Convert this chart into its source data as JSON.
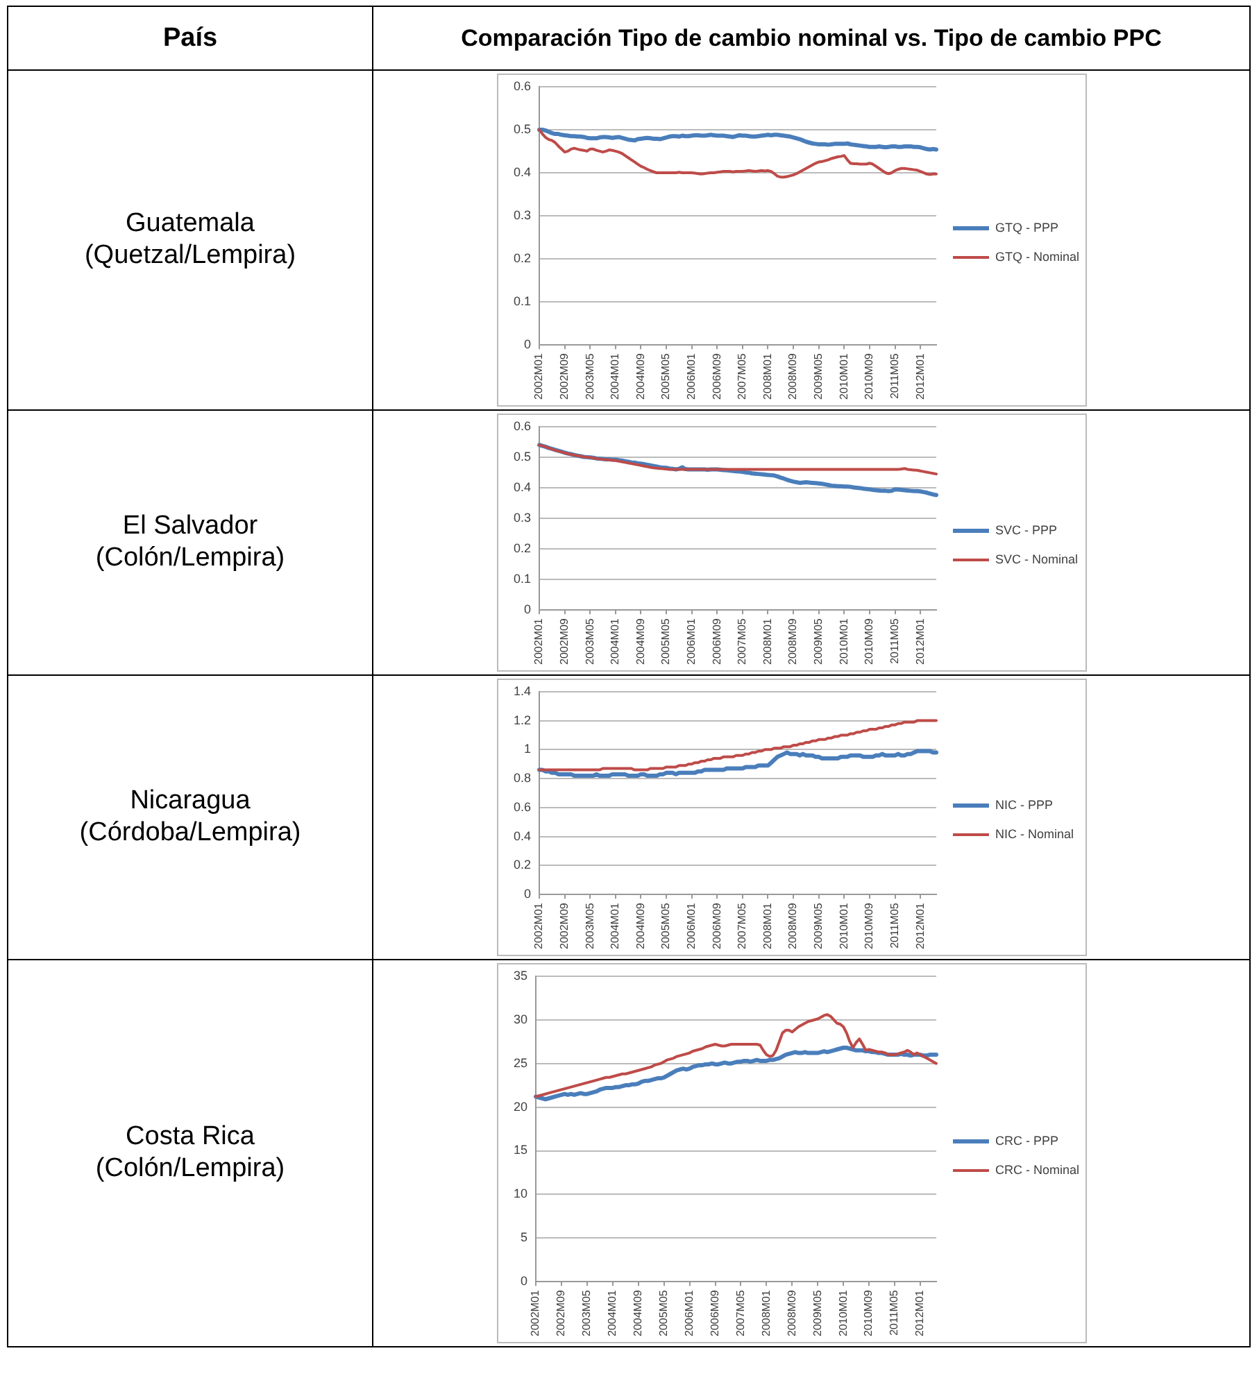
{
  "chart_data": [
    {
      "type": "other",
      "title": "Comparación Tipo de cambio nominal vs. Tipo de cambio PPC",
      "annotations": [
        "País"
      ]
    },
    {
      "type": "line",
      "ylabel": "Guatemala (Quetzal/Lempira)",
      "grid": "y",
      "legend": "right",
      "marker": "none",
      "ylim": [
        0,
        0.6
      ],
      "yticks": [
        0,
        0.1,
        0.2,
        0.3,
        0.4,
        0.5,
        0.6
      ],
      "categories": [
        "2002M01",
        null,
        null,
        null,
        null,
        null,
        null,
        null,
        "2002M09",
        null,
        null,
        null,
        null,
        null,
        null,
        null,
        "2003M05",
        null,
        null,
        null,
        null,
        null,
        null,
        null,
        "2004M01",
        null,
        null,
        null,
        null,
        null,
        null,
        null,
        "2004M09",
        null,
        null,
        null,
        null,
        null,
        null,
        null,
        "2005M05",
        null,
        null,
        null,
        null,
        null,
        null,
        null,
        "2006M01",
        null,
        null,
        null,
        null,
        null,
        null,
        null,
        "2006M09",
        null,
        null,
        null,
        null,
        null,
        null,
        null,
        "2007M05",
        null,
        null,
        null,
        null,
        null,
        null,
        null,
        "2008M01",
        null,
        null,
        null,
        null,
        null,
        null,
        null,
        "2008M09",
        null,
        null,
        null,
        null,
        null,
        null,
        null,
        "2009M05",
        null,
        null,
        null,
        null,
        null,
        null,
        null,
        "2010M01",
        null,
        null,
        null,
        null,
        null,
        null,
        null,
        "2010M09",
        null,
        null,
        null,
        null,
        null,
        null,
        null,
        "2011M05",
        null,
        null,
        null,
        null,
        null,
        null,
        null,
        "2012M01",
        null,
        null,
        null,
        null,
        null
      ],
      "series": [
        {
          "name": "GTQ - PPP",
          "color": "#4a7ebb",
          "values": [
            0.5,
            0.5,
            0.498,
            0.495,
            0.492,
            0.49,
            0.49,
            0.488,
            0.487,
            0.486,
            0.485,
            0.485,
            0.484,
            0.484,
            0.483,
            0.481,
            0.48,
            0.48,
            0.48,
            0.482,
            0.483,
            0.483,
            0.482,
            0.481,
            0.482,
            0.483,
            0.481,
            0.479,
            0.477,
            0.476,
            0.475,
            0.478,
            0.479,
            0.48,
            0.481,
            0.48,
            0.479,
            0.479,
            0.478,
            0.48,
            0.482,
            0.484,
            0.485,
            0.485,
            0.484,
            0.486,
            0.485,
            0.485,
            0.486,
            0.487,
            0.487,
            0.486,
            0.486,
            0.487,
            0.488,
            0.487,
            0.486,
            0.486,
            0.486,
            0.485,
            0.484,
            0.483,
            0.485,
            0.487,
            0.486,
            0.486,
            0.485,
            0.484,
            0.484,
            0.485,
            0.486,
            0.487,
            0.488,
            0.487,
            0.488,
            0.488,
            0.487,
            0.486,
            0.485,
            0.484,
            0.482,
            0.48,
            0.478,
            0.475,
            0.472,
            0.47,
            0.468,
            0.467,
            0.466,
            0.466,
            0.466,
            0.465,
            0.466,
            0.467,
            0.467,
            0.467,
            0.467,
            0.468,
            0.466,
            0.465,
            0.464,
            0.463,
            0.462,
            0.461,
            0.46,
            0.46,
            0.46,
            0.461,
            0.46,
            0.459,
            0.46,
            0.461,
            0.461,
            0.46,
            0.46,
            0.461,
            0.461,
            0.461,
            0.46,
            0.46,
            0.459,
            0.457,
            0.455,
            0.454,
            0.455,
            0.454
          ]
        },
        {
          "name": "GTQ - Nominal",
          "color": "#be4b48",
          "values": [
            0.5,
            0.49,
            0.482,
            0.477,
            0.475,
            0.47,
            0.462,
            0.455,
            0.448,
            0.45,
            0.455,
            0.457,
            0.455,
            0.453,
            0.452,
            0.45,
            0.455,
            0.455,
            0.452,
            0.45,
            0.448,
            0.45,
            0.453,
            0.452,
            0.45,
            0.448,
            0.445,
            0.44,
            0.435,
            0.43,
            0.425,
            0.42,
            0.415,
            0.412,
            0.408,
            0.405,
            0.402,
            0.4,
            0.4,
            0.4,
            0.4,
            0.4,
            0.4,
            0.4,
            0.401,
            0.4,
            0.4,
            0.4,
            0.4,
            0.399,
            0.398,
            0.397,
            0.398,
            0.399,
            0.4,
            0.4,
            0.401,
            0.402,
            0.403,
            0.403,
            0.403,
            0.402,
            0.403,
            0.403,
            0.403,
            0.404,
            0.405,
            0.404,
            0.403,
            0.404,
            0.405,
            0.404,
            0.405,
            0.403,
            0.398,
            0.392,
            0.39,
            0.39,
            0.391,
            0.393,
            0.395,
            0.398,
            0.402,
            0.406,
            0.41,
            0.414,
            0.418,
            0.422,
            0.425,
            0.426,
            0.428,
            0.43,
            0.433,
            0.435,
            0.437,
            0.438,
            0.44,
            0.43,
            0.422,
            0.421,
            0.421,
            0.42,
            0.42,
            0.42,
            0.422,
            0.42,
            0.415,
            0.41,
            0.405,
            0.4,
            0.398,
            0.4,
            0.405,
            0.408,
            0.41,
            0.41,
            0.409,
            0.408,
            0.407,
            0.406,
            0.403,
            0.4,
            0.397,
            0.396,
            0.397,
            0.397
          ]
        }
      ]
    },
    {
      "type": "line",
      "ylabel": "El Salvador (Colón/Lempira)",
      "grid": "y",
      "legend": "right",
      "marker": "none",
      "ylim": [
        0,
        0.6
      ],
      "yticks": [
        0,
        0.1,
        0.2,
        0.3,
        0.4,
        0.5,
        0.6
      ],
      "categories": [
        "2002M01",
        null,
        null,
        null,
        null,
        null,
        null,
        null,
        "2002M09",
        null,
        null,
        null,
        null,
        null,
        null,
        null,
        "2003M05",
        null,
        null,
        null,
        null,
        null,
        null,
        null,
        "2004M01",
        null,
        null,
        null,
        null,
        null,
        null,
        null,
        "2004M09",
        null,
        null,
        null,
        null,
        null,
        null,
        null,
        "2005M05",
        null,
        null,
        null,
        null,
        null,
        null,
        null,
        "2006M01",
        null,
        null,
        null,
        null,
        null,
        null,
        null,
        "2006M09",
        null,
        null,
        null,
        null,
        null,
        null,
        null,
        "2007M05",
        null,
        null,
        null,
        null,
        null,
        null,
        null,
        "2008M01",
        null,
        null,
        null,
        null,
        null,
        null,
        null,
        "2008M09",
        null,
        null,
        null,
        null,
        null,
        null,
        null,
        "2009M05",
        null,
        null,
        null,
        null,
        null,
        null,
        null,
        "2010M01",
        null,
        null,
        null,
        null,
        null,
        null,
        null,
        "2010M09",
        null,
        null,
        null,
        null,
        null,
        null,
        null,
        "2011M05",
        null,
        null,
        null,
        null,
        null,
        null,
        null,
        "2012M01",
        null,
        null,
        null,
        null,
        null
      ],
      "series": [
        {
          "name": "SVC - PPP",
          "color": "#4a7ebb",
          "values": [
            0.54,
            0.537,
            0.534,
            0.53,
            0.527,
            0.524,
            0.521,
            0.518,
            0.515,
            0.512,
            0.51,
            0.507,
            0.505,
            0.503,
            0.501,
            0.5,
            0.499,
            0.498,
            0.496,
            0.495,
            0.494,
            0.493,
            0.493,
            0.492,
            0.492,
            0.49,
            0.489,
            0.487,
            0.485,
            0.483,
            0.482,
            0.48,
            0.479,
            0.477,
            0.475,
            0.473,
            0.471,
            0.469,
            0.467,
            0.466,
            0.465,
            0.463,
            0.462,
            0.46,
            0.462,
            0.467,
            0.461,
            0.46,
            0.46,
            0.46,
            0.46,
            0.46,
            0.46,
            0.459,
            0.46,
            0.46,
            0.46,
            0.459,
            0.458,
            0.457,
            0.456,
            0.455,
            0.454,
            0.453,
            0.452,
            0.45,
            0.449,
            0.447,
            0.446,
            0.445,
            0.444,
            0.443,
            0.442,
            0.441,
            0.44,
            0.437,
            0.433,
            0.43,
            0.426,
            0.423,
            0.42,
            0.418,
            0.416,
            0.417,
            0.418,
            0.417,
            0.416,
            0.415,
            0.414,
            0.413,
            0.411,
            0.409,
            0.407,
            0.406,
            0.405,
            0.405,
            0.404,
            0.404,
            0.403,
            0.401,
            0.4,
            0.399,
            0.397,
            0.396,
            0.395,
            0.393,
            0.392,
            0.391,
            0.39,
            0.39,
            0.389,
            0.39,
            0.395,
            0.394,
            0.393,
            0.392,
            0.391,
            0.39,
            0.389,
            0.389,
            0.388,
            0.386,
            0.384,
            0.381,
            0.378,
            0.376
          ]
        },
        {
          "name": "SVC - Nominal",
          "color": "#be4b48",
          "values": [
            0.54,
            0.537,
            0.534,
            0.53,
            0.526,
            0.523,
            0.52,
            0.517,
            0.514,
            0.511,
            0.509,
            0.507,
            0.505,
            0.503,
            0.501,
            0.5,
            0.499,
            0.497,
            0.496,
            0.494,
            0.493,
            0.492,
            0.491,
            0.49,
            0.489,
            0.487,
            0.485,
            0.483,
            0.481,
            0.479,
            0.477,
            0.475,
            0.473,
            0.471,
            0.469,
            0.467,
            0.465,
            0.464,
            0.463,
            0.462,
            0.461,
            0.46,
            0.46,
            0.46,
            0.46,
            0.46,
            0.46,
            0.46,
            0.46,
            0.46,
            0.46,
            0.46,
            0.46,
            0.46,
            0.46,
            0.46,
            0.46,
            0.46,
            0.46,
            0.46,
            0.46,
            0.46,
            0.46,
            0.46,
            0.46,
            0.46,
            0.46,
            0.46,
            0.46,
            0.46,
            0.46,
            0.46,
            0.46,
            0.46,
            0.46,
            0.46,
            0.46,
            0.46,
            0.46,
            0.46,
            0.46,
            0.46,
            0.46,
            0.46,
            0.46,
            0.46,
            0.46,
            0.46,
            0.46,
            0.46,
            0.46,
            0.46,
            0.46,
            0.46,
            0.46,
            0.46,
            0.46,
            0.46,
            0.46,
            0.46,
            0.46,
            0.46,
            0.46,
            0.46,
            0.46,
            0.46,
            0.46,
            0.46,
            0.46,
            0.46,
            0.46,
            0.46,
            0.46,
            0.46,
            0.461,
            0.463,
            0.46,
            0.459,
            0.458,
            0.457,
            0.455,
            0.453,
            0.451,
            0.449,
            0.447,
            0.445
          ]
        }
      ]
    },
    {
      "type": "line",
      "ylabel": "Nicaragua (Córdoba/Lempira)",
      "grid": "y",
      "legend": "right",
      "marker": "none",
      "ylim": [
        0,
        1.4
      ],
      "yticks": [
        0,
        0.2,
        0.4,
        0.6,
        0.8,
        1,
        1.2,
        1.4
      ],
      "categories": [
        "2002M01",
        null,
        null,
        null,
        null,
        null,
        null,
        null,
        "2002M09",
        null,
        null,
        null,
        null,
        null,
        null,
        null,
        "2003M05",
        null,
        null,
        null,
        null,
        null,
        null,
        null,
        "2004M01",
        null,
        null,
        null,
        null,
        null,
        null,
        null,
        "2004M09",
        null,
        null,
        null,
        null,
        null,
        null,
        null,
        "2005M05",
        null,
        null,
        null,
        null,
        null,
        null,
        null,
        "2006M01",
        null,
        null,
        null,
        null,
        null,
        null,
        null,
        "2006M09",
        null,
        null,
        null,
        null,
        null,
        null,
        null,
        "2007M05",
        null,
        null,
        null,
        null,
        null,
        null,
        null,
        "2008M01",
        null,
        null,
        null,
        null,
        null,
        null,
        null,
        "2008M09",
        null,
        null,
        null,
        null,
        null,
        null,
        null,
        "2009M05",
        null,
        null,
        null,
        null,
        null,
        null,
        null,
        "2010M01",
        null,
        null,
        null,
        null,
        null,
        null,
        null,
        "2010M09",
        null,
        null,
        null,
        null,
        null,
        null,
        null,
        "2011M05",
        null,
        null,
        null,
        null,
        null,
        null,
        null,
        "2012M01",
        null,
        null,
        null,
        null,
        null
      ],
      "series": [
        {
          "name": "NIC - PPP",
          "color": "#4a7ebb",
          "values": [
            0.86,
            0.86,
            0.85,
            0.85,
            0.84,
            0.84,
            0.83,
            0.83,
            0.83,
            0.83,
            0.83,
            0.82,
            0.82,
            0.82,
            0.82,
            0.82,
            0.82,
            0.82,
            0.83,
            0.82,
            0.82,
            0.82,
            0.82,
            0.83,
            0.83,
            0.83,
            0.83,
            0.83,
            0.82,
            0.82,
            0.82,
            0.82,
            0.83,
            0.83,
            0.82,
            0.82,
            0.82,
            0.82,
            0.83,
            0.83,
            0.84,
            0.84,
            0.84,
            0.83,
            0.84,
            0.84,
            0.84,
            0.84,
            0.84,
            0.84,
            0.85,
            0.85,
            0.86,
            0.86,
            0.86,
            0.86,
            0.86,
            0.86,
            0.86,
            0.87,
            0.87,
            0.87,
            0.87,
            0.87,
            0.87,
            0.88,
            0.88,
            0.88,
            0.88,
            0.89,
            0.89,
            0.89,
            0.89,
            0.91,
            0.93,
            0.95,
            0.96,
            0.97,
            0.98,
            0.97,
            0.97,
            0.97,
            0.96,
            0.97,
            0.96,
            0.96,
            0.96,
            0.95,
            0.95,
            0.94,
            0.94,
            0.94,
            0.94,
            0.94,
            0.94,
            0.95,
            0.95,
            0.95,
            0.96,
            0.96,
            0.96,
            0.96,
            0.95,
            0.95,
            0.95,
            0.95,
            0.96,
            0.96,
            0.97,
            0.96,
            0.96,
            0.96,
            0.96,
            0.97,
            0.96,
            0.96,
            0.97,
            0.97,
            0.98,
            0.99,
            0.99,
            0.99,
            0.99,
            0.99,
            0.98,
            0.98
          ]
        },
        {
          "name": "NIC - Nominal",
          "color": "#be4b48",
          "values": [
            0.86,
            0.86,
            0.86,
            0.86,
            0.86,
            0.86,
            0.86,
            0.86,
            0.86,
            0.86,
            0.86,
            0.86,
            0.86,
            0.86,
            0.86,
            0.86,
            0.86,
            0.86,
            0.86,
            0.86,
            0.87,
            0.87,
            0.87,
            0.87,
            0.87,
            0.87,
            0.87,
            0.87,
            0.87,
            0.87,
            0.86,
            0.86,
            0.86,
            0.86,
            0.86,
            0.87,
            0.87,
            0.87,
            0.87,
            0.87,
            0.88,
            0.88,
            0.88,
            0.88,
            0.89,
            0.89,
            0.89,
            0.9,
            0.9,
            0.91,
            0.91,
            0.92,
            0.92,
            0.93,
            0.93,
            0.94,
            0.94,
            0.94,
            0.95,
            0.95,
            0.95,
            0.95,
            0.96,
            0.96,
            0.96,
            0.97,
            0.97,
            0.98,
            0.98,
            0.99,
            0.99,
            1,
            1,
            1,
            1.01,
            1.01,
            1.01,
            1.02,
            1.02,
            1.02,
            1.03,
            1.03,
            1.04,
            1.04,
            1.05,
            1.05,
            1.06,
            1.06,
            1.07,
            1.07,
            1.07,
            1.08,
            1.08,
            1.09,
            1.09,
            1.1,
            1.1,
            1.1,
            1.11,
            1.11,
            1.12,
            1.12,
            1.13,
            1.13,
            1.14,
            1.14,
            1.14,
            1.15,
            1.15,
            1.16,
            1.16,
            1.17,
            1.17,
            1.18,
            1.18,
            1.19,
            1.19,
            1.19,
            1.19,
            1.2,
            1.2,
            1.2,
            1.2,
            1.2,
            1.2,
            1.2
          ]
        }
      ]
    },
    {
      "type": "line",
      "ylabel": "Costa Rica (Colón/Lempira)",
      "grid": "y",
      "legend": "right",
      "marker": "none",
      "ylim": [
        0,
        35
      ],
      "yticks": [
        0,
        5,
        10,
        15,
        20,
        25,
        30,
        35
      ],
      "categories": [
        "2002M01",
        null,
        null,
        null,
        null,
        null,
        null,
        null,
        "2002M09",
        null,
        null,
        null,
        null,
        null,
        null,
        null,
        "2003M05",
        null,
        null,
        null,
        null,
        null,
        null,
        null,
        "2004M01",
        null,
        null,
        null,
        null,
        null,
        null,
        null,
        "2004M09",
        null,
        null,
        null,
        null,
        null,
        null,
        null,
        "2005M05",
        null,
        null,
        null,
        null,
        null,
        null,
        null,
        "2006M01",
        null,
        null,
        null,
        null,
        null,
        null,
        null,
        "2006M09",
        null,
        null,
        null,
        null,
        null,
        null,
        null,
        "2007M05",
        null,
        null,
        null,
        null,
        null,
        null,
        null,
        "2008M01",
        null,
        null,
        null,
        null,
        null,
        null,
        null,
        "2008M09",
        null,
        null,
        null,
        null,
        null,
        null,
        null,
        "2009M05",
        null,
        null,
        null,
        null,
        null,
        null,
        null,
        "2010M01",
        null,
        null,
        null,
        null,
        null,
        null,
        null,
        "2010M09",
        null,
        null,
        null,
        null,
        null,
        null,
        null,
        "2011M05",
        null,
        null,
        null,
        null,
        null,
        null,
        null,
        "2012M01",
        null,
        null,
        null,
        null,
        null
      ],
      "series": [
        {
          "name": "CRC - PPP",
          "color": "#4a7ebb",
          "values": [
            21.2,
            21.1,
            21.0,
            20.9,
            21.0,
            21.1,
            21.2,
            21.3,
            21.4,
            21.5,
            21.4,
            21.5,
            21.4,
            21.5,
            21.6,
            21.5,
            21.5,
            21.6,
            21.7,
            21.8,
            22.0,
            22.1,
            22.2,
            22.2,
            22.2,
            22.3,
            22.3,
            22.4,
            22.5,
            22.5,
            22.6,
            22.6,
            22.7,
            22.9,
            23.0,
            23.0,
            23.1,
            23.2,
            23.3,
            23.3,
            23.4,
            23.6,
            23.8,
            24.0,
            24.2,
            24.3,
            24.4,
            24.3,
            24.4,
            24.6,
            24.7,
            24.8,
            24.8,
            24.9,
            24.9,
            25.0,
            24.9,
            24.9,
            25.0,
            25.1,
            25.0,
            25.0,
            25.1,
            25.2,
            25.2,
            25.3,
            25.3,
            25.2,
            25.3,
            25.4,
            25.3,
            25.3,
            25.3,
            25.4,
            25.4,
            25.5,
            25.6,
            25.8,
            26.0,
            26.1,
            26.2,
            26.3,
            26.2,
            26.2,
            26.3,
            26.2,
            26.2,
            26.2,
            26.2,
            26.3,
            26.4,
            26.3,
            26.4,
            26.5,
            26.6,
            26.7,
            26.8,
            26.8,
            26.7,
            26.6,
            26.5,
            26.5,
            26.5,
            26.4,
            26.4,
            26.3,
            26.3,
            26.2,
            26.2,
            26.1,
            26.0,
            26.0,
            26.0,
            26.0,
            26.1,
            26.0,
            26.0,
            25.9,
            26.0,
            26.0,
            26.0,
            25.9,
            25.9,
            26.0,
            26.0,
            26.0
          ]
        },
        {
          "name": "CRC - Nominal",
          "color": "#be4b48",
          "values": [
            21.2,
            21.3,
            21.4,
            21.5,
            21.6,
            21.7,
            21.8,
            21.9,
            22.0,
            22.1,
            22.2,
            22.3,
            22.4,
            22.5,
            22.6,
            22.7,
            22.8,
            22.9,
            23.0,
            23.1,
            23.2,
            23.3,
            23.4,
            23.4,
            23.5,
            23.6,
            23.7,
            23.8,
            23.8,
            23.9,
            24.0,
            24.1,
            24.2,
            24.3,
            24.4,
            24.5,
            24.6,
            24.8,
            24.9,
            25.0,
            25.2,
            25.4,
            25.5,
            25.6,
            25.8,
            25.9,
            26.0,
            26.1,
            26.2,
            26.4,
            26.5,
            26.6,
            26.7,
            26.9,
            27.0,
            27.1,
            27.2,
            27.1,
            27.0,
            27.0,
            27.1,
            27.2,
            27.2,
            27.2,
            27.2,
            27.2,
            27.2,
            27.2,
            27.2,
            27.2,
            27.1,
            26.5,
            26.0,
            25.8,
            25.9,
            26.5,
            27.5,
            28.5,
            28.8,
            28.8,
            28.6,
            28.9,
            29.2,
            29.4,
            29.6,
            29.8,
            29.9,
            30.0,
            30.1,
            30.3,
            30.5,
            30.6,
            30.4,
            30.0,
            29.6,
            29.5,
            29.2,
            28.5,
            27.5,
            26.8,
            27.4,
            27.8,
            27.2,
            26.5,
            26.6,
            26.5,
            26.4,
            26.3,
            26.3,
            26.2,
            26.0,
            26.0,
            26.0,
            26.1,
            26.2,
            26.3,
            26.5,
            26.3,
            26.0,
            26.2,
            26.0,
            25.8,
            25.6,
            25.4,
            25.2,
            25.0
          ]
        }
      ]
    }
  ]
}
